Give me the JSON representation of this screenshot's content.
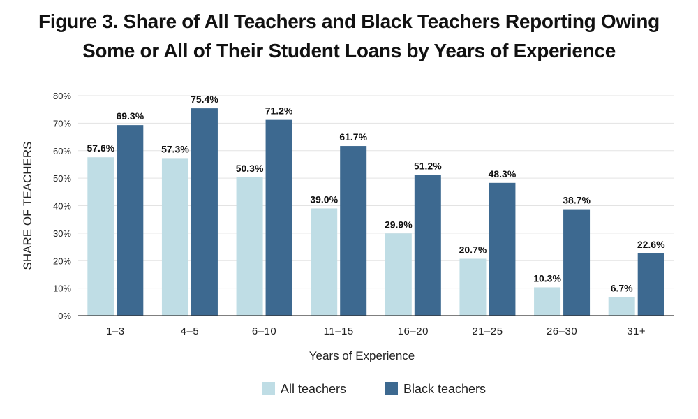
{
  "chart_data": {
    "type": "bar",
    "title_line1": "Figure 3. Share of All Teachers and Black Teachers Reporting Owing",
    "title_line2": "Some or All of Their Student Loans by Years of Experience",
    "xlabel": "Years of Experience",
    "ylabel": "SHARE OF TEACHERS",
    "ylim": [
      0,
      80
    ],
    "yticks": [
      0,
      10,
      20,
      30,
      40,
      50,
      60,
      70,
      80
    ],
    "ytick_labels": [
      "0%",
      "10%",
      "20%",
      "30%",
      "40%",
      "50%",
      "60%",
      "70%",
      "80%"
    ],
    "grid": true,
    "legend_position": "bottom",
    "categories": [
      "1–3",
      "4–5",
      "6–10",
      "11–15",
      "16–20",
      "21–25",
      "26–30",
      "31+"
    ],
    "series": [
      {
        "name": "All teachers",
        "color": "#bfdde5",
        "values": [
          57.6,
          57.3,
          50.3,
          39.0,
          29.9,
          20.7,
          10.3,
          6.7
        ],
        "labels": [
          "57.6%",
          "57.3%",
          "50.3%",
          "39.0%",
          "29.9%",
          "20.7%",
          "10.3%",
          "6.7%"
        ]
      },
      {
        "name": "Black teachers",
        "color": "#3d6990",
        "values": [
          69.3,
          75.4,
          71.2,
          61.7,
          51.2,
          48.3,
          38.7,
          22.6
        ],
        "labels": [
          "69.3%",
          "75.4%",
          "71.2%",
          "61.7%",
          "51.2%",
          "48.3%",
          "38.7%",
          "22.6%"
        ]
      }
    ]
  }
}
